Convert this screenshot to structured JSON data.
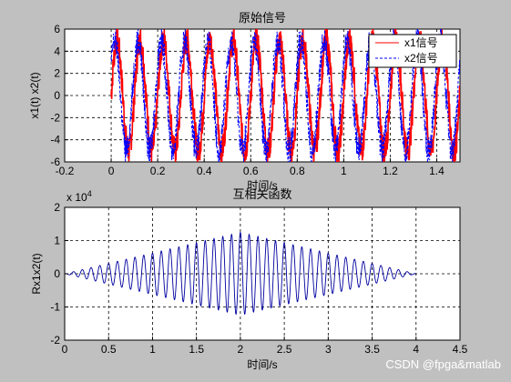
{
  "chart_data": [
    {
      "type": "line",
      "title": "原始信号",
      "xlabel": "时间/s",
      "ylabel": "x1(t) x2(t)",
      "xlim": [
        -0.2,
        1.5
      ],
      "ylim": [
        -6,
        6
      ],
      "xticks": [
        "-0.2",
        "0",
        "0.2",
        "0.4",
        "0.6",
        "0.8",
        "1",
        "1.2",
        "1.4"
      ],
      "yticks": [
        "6",
        "4",
        "2",
        "0",
        "-2",
        "-4",
        "-6"
      ],
      "grid": true,
      "legend": "top-right",
      "series": [
        {
          "name": "x1信号",
          "color": "#ff0000",
          "style": "solid",
          "freq_hz": 10,
          "amplitude": 5,
          "x_start": 0
        },
        {
          "name": "x2信号",
          "color": "#0000ff",
          "style": "dashed",
          "freq_hz": 10,
          "amplitude": 5,
          "x_start": 0
        }
      ]
    },
    {
      "type": "line",
      "title": "互相关函数",
      "xlabel": "时间/s",
      "ylabel": "Rx1x2(t)",
      "scale_label_base": "x 10",
      "scale_label_exp": "4",
      "xlim": [
        0,
        4.5
      ],
      "ylim": [
        -2,
        2
      ],
      "xticks": [
        "0",
        "0.5",
        "1",
        "1.5",
        "2",
        "2.5",
        "3",
        "3.5",
        "4",
        "4.5"
      ],
      "yticks": [
        "2",
        "1",
        "0",
        "-1",
        "-2"
      ],
      "grid": true,
      "series": [
        {
          "color": "#0000a0",
          "style": "solid",
          "center": 2.0,
          "half_width": 2.0,
          "peak": 1.25,
          "freq_hz": 10
        }
      ]
    }
  ],
  "watermark": "CSDN @fpga&matlab"
}
